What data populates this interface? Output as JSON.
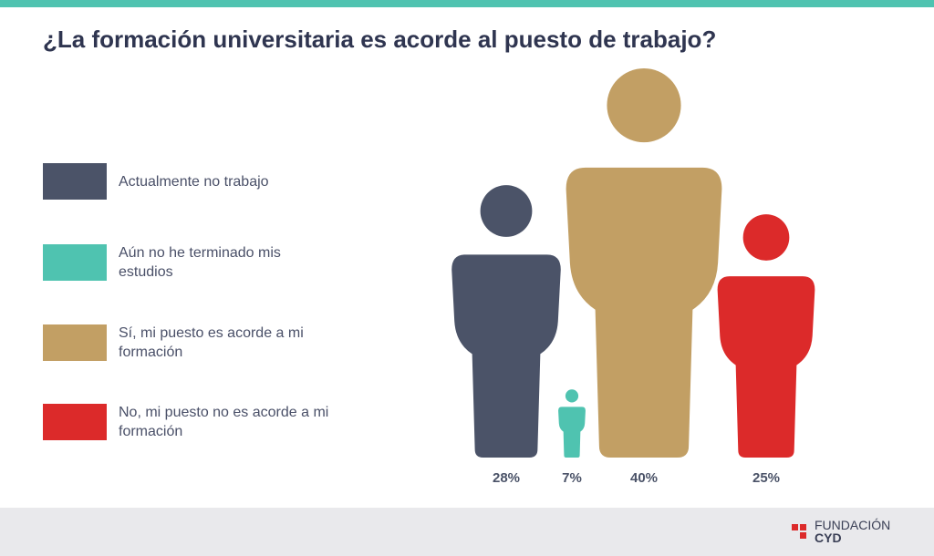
{
  "chart_data": {
    "type": "pictogram",
    "title": "¿La formación universitaria es acorde al puesto de trabajo?",
    "categories": [
      "Actualmente no trabajo",
      "Aún no he terminado mis estudios",
      "Sí, mi puesto es acorde a mi formación",
      "No, mi puesto no es acorde a mi formación"
    ],
    "values": [
      28,
      7,
      40,
      25
    ],
    "value_labels": [
      "28%",
      "7%",
      "40%",
      "25%"
    ],
    "colors": [
      "#4b5368",
      "#4fc3b0",
      "#c29f64",
      "#dc2a2a"
    ]
  },
  "footer": {
    "brand": [
      "FUNDACIÓN",
      "CYD"
    ]
  }
}
